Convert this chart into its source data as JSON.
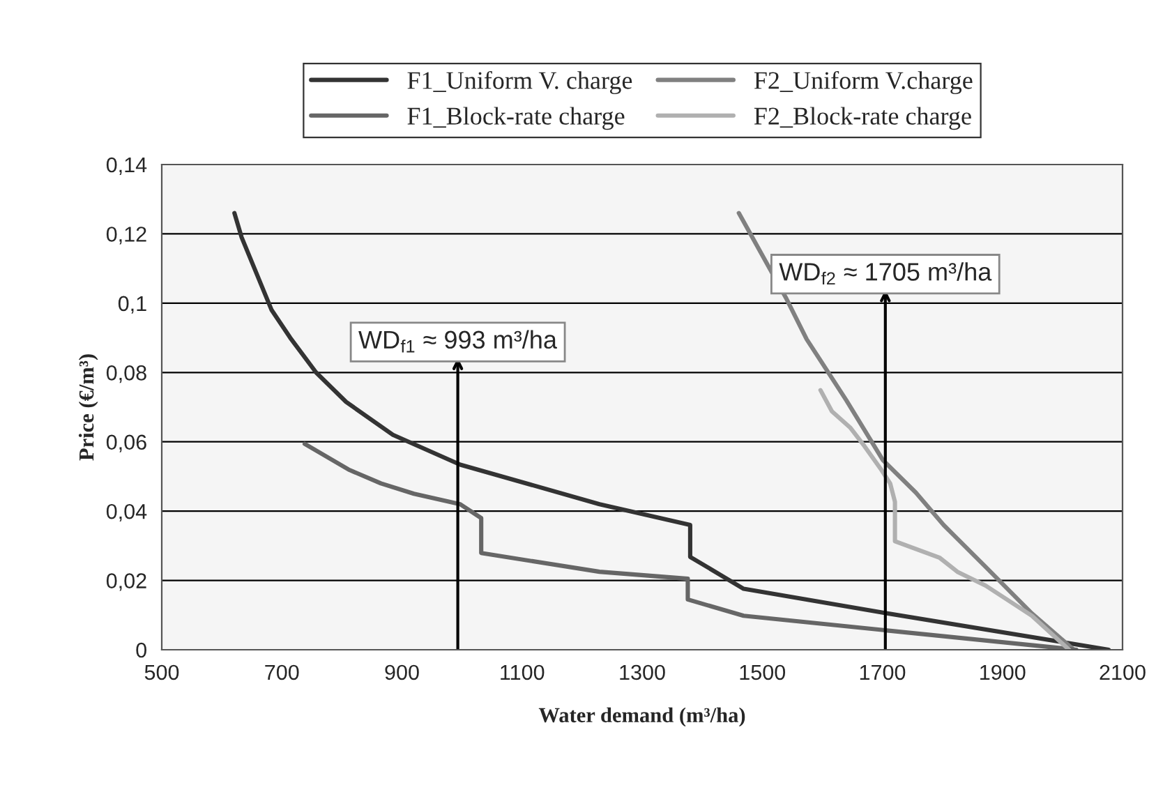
{
  "chart_data": {
    "type": "line",
    "xlabel": "Water demand (m³/ha)",
    "ylabel": "Price (€/m³)",
    "xlim": [
      500,
      2100
    ],
    "xticks": [
      500,
      700,
      900,
      1100,
      1300,
      1500,
      1700,
      1900,
      2100
    ],
    "ylim": [
      0,
      0.14
    ],
    "yticks": [
      {
        "value": 0,
        "label": "0"
      },
      {
        "value": 0.02,
        "label": "0,02"
      },
      {
        "value": 0.04,
        "label": "0,04"
      },
      {
        "value": 0.06,
        "label": "0,06"
      },
      {
        "value": 0.08,
        "label": "0,08"
      },
      {
        "value": 0.1,
        "label": "0,1"
      },
      {
        "value": 0.12,
        "label": "0,12"
      },
      {
        "value": 0.14,
        "label": "0,14"
      }
    ],
    "grid": "y",
    "legend": "top",
    "line_style": "solid",
    "marker": "none",
    "series": [
      {
        "name": "F1_Uniform V. charge",
        "color": "#333333",
        "x": [
          621,
          633,
          683,
          714,
          757,
          807,
          885,
          997,
          1229,
          1380,
          1380,
          1469,
          1701,
          2077
        ],
        "values": [
          0.126,
          0.119,
          0.098,
          0.09,
          0.08,
          0.0715,
          0.062,
          0.0534,
          0.042,
          0.036,
          0.0268,
          0.0176,
          0.0107,
          0
        ]
      },
      {
        "name": "F2_Uniform V.charge",
        "color": "#808080",
        "x": [
          1461,
          1539,
          1574,
          1640,
          1701,
          1756,
          1802,
          1872,
          1949,
          2019
        ],
        "values": [
          0.126,
          0.1017,
          0.0896,
          0.072,
          0.0547,
          0.0453,
          0.036,
          0.0239,
          0.0105,
          0
        ]
      },
      {
        "name": "F1_Block-rate charge",
        "color": "#666666",
        "x": [
          738,
          811,
          865,
          920,
          997,
          1032,
          1032,
          1229,
          1376,
          1376,
          1469,
          2023
        ],
        "values": [
          0.0594,
          0.052,
          0.048,
          0.045,
          0.042,
          0.038,
          0.0279,
          0.0225,
          0.0205,
          0.0145,
          0.0098,
          0
        ]
      },
      {
        "name": "F2_Block-rate charge",
        "color": "#b0b0b0",
        "x": [
          1597,
          1616,
          1647,
          1670,
          1698,
          1713,
          1721,
          1721,
          1795,
          1825,
          1872,
          1949,
          2011
        ],
        "values": [
          0.0749,
          0.0688,
          0.064,
          0.0588,
          0.052,
          0.048,
          0.0427,
          0.0313,
          0.0266,
          0.0225,
          0.0185,
          0.0098,
          0
        ]
      }
    ],
    "ref_lines": [
      {
        "axis": "x",
        "value": 993,
        "label": "WD$_{f1}$ ≈ 993 m³/ha",
        "color": "#000000"
      },
      {
        "axis": "x",
        "value": 1705,
        "label": "WD$_{f2}$ ≈ 1705 m³/ha",
        "color": "#000000"
      }
    ]
  }
}
